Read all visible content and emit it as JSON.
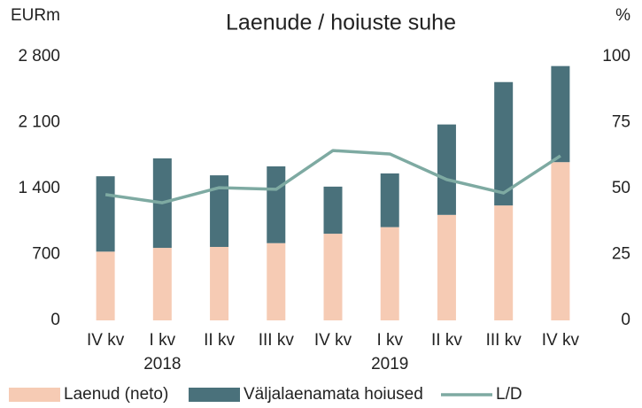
{
  "chart_data": {
    "type": "stacked_bar_line",
    "title": "Laenude / hoiuste suhe",
    "y_axis_label": "EURm",
    "y2_axis_label": "%",
    "categories": [
      "IV kv",
      "I kv",
      "II kv",
      "III kv",
      "IV kv",
      "I kv",
      "II kv",
      "III kv",
      "IV kv"
    ],
    "x_groups": [
      null,
      "2018",
      null,
      null,
      null,
      "2019",
      null,
      null,
      null
    ],
    "series": [
      {
        "name": "Laenud (neto)",
        "color": "#f6cbb4",
        "type": "bar",
        "values": [
          730,
          770,
          780,
          820,
          920,
          990,
          1120,
          1220,
          1680
        ]
      },
      {
        "name": "Väljalaenamata hoiused",
        "color": "#4a717b",
        "type": "bar",
        "values": [
          800,
          950,
          760,
          815,
          500,
          570,
          960,
          1310,
          1020
        ]
      },
      {
        "name": "L/D",
        "color": "#7eaaa2",
        "type": "line",
        "axis": "y2",
        "values": [
          47.7,
          44.6,
          50.3,
          49.7,
          64.4,
          63.1,
          53.4,
          48.3,
          62.4
        ]
      }
    ],
    "ylim": [
      0,
      2800
    ],
    "yticks": [
      0,
      700,
      {
        "value": 1400,
        "label": "1 400"
      },
      {
        "value": 2100,
        "label": "2 100"
      },
      {
        "value": 2800,
        "label": "2 800"
      }
    ],
    "y2lim": [
      0,
      100
    ],
    "y2ticks": [
      0,
      25,
      50,
      75,
      100
    ],
    "grid": false,
    "legend": "bottom"
  }
}
